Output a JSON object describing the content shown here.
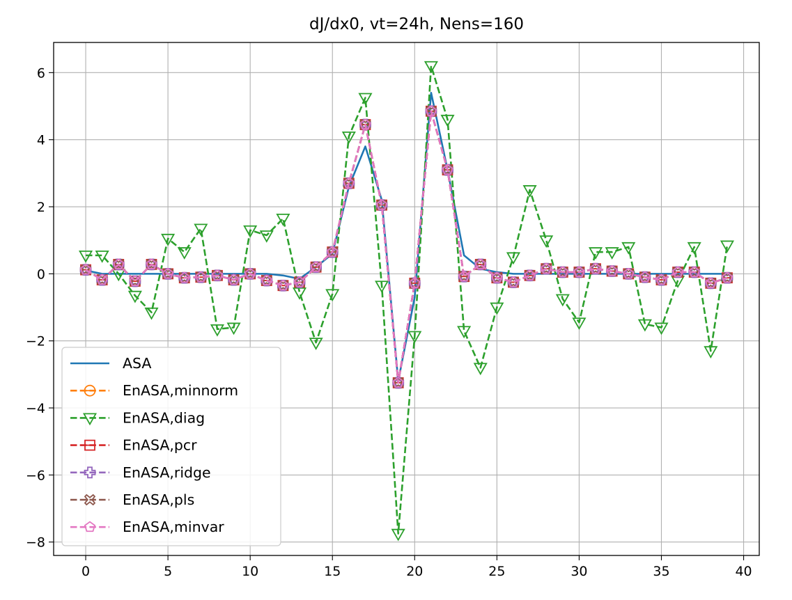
{
  "chart_data": {
    "type": "line",
    "title": "dJ/dx0, vt=24h, Nens=160",
    "xlabel": "",
    "ylabel": "",
    "xlim": [
      -1.95,
      40.95
    ],
    "ylim": [
      -8.4,
      6.9
    ],
    "xticks": [
      0,
      5,
      10,
      15,
      20,
      25,
      30,
      35,
      40
    ],
    "xtick_labels": [
      "0",
      "5",
      "10",
      "15",
      "20",
      "25",
      "30",
      "35",
      "40"
    ],
    "yticks": [
      -8,
      -6,
      -4,
      -2,
      0,
      2,
      4,
      6
    ],
    "ytick_labels": [
      "−8",
      "−6",
      "−4",
      "−2",
      "0",
      "2",
      "4",
      "6"
    ],
    "grid": true,
    "legend_position": "lower-left",
    "x": [
      0,
      1,
      2,
      3,
      4,
      5,
      6,
      7,
      8,
      9,
      10,
      11,
      12,
      13,
      14,
      15,
      16,
      17,
      18,
      19,
      20,
      21,
      22,
      23,
      24,
      25,
      26,
      27,
      28,
      29,
      30,
      31,
      32,
      33,
      34,
      35,
      36,
      37,
      38,
      39
    ],
    "series": [
      {
        "name": "ASA",
        "color": "#1f77b4",
        "style": "solid",
        "marker": "none",
        "values": [
          0.1,
          0.0,
          0.0,
          0.0,
          0.0,
          0.0,
          0.0,
          0.0,
          0.0,
          0.0,
          0.0,
          0.0,
          -0.05,
          -0.15,
          0.2,
          0.6,
          2.6,
          3.8,
          2.2,
          -3.2,
          -0.7,
          5.4,
          3.1,
          0.55,
          0.15,
          0.05,
          0.0,
          0.0,
          0.0,
          0.0,
          0.0,
          0.0,
          0.0,
          0.0,
          0.0,
          0.0,
          0.0,
          0.0,
          0.0,
          0.0
        ]
      },
      {
        "name": "EnASA,minnorm",
        "color": "#ff7f0e",
        "style": "dashed",
        "marker": "circle",
        "values": [
          0.12,
          -0.18,
          0.28,
          -0.22,
          0.28,
          0.0,
          -0.12,
          -0.1,
          -0.05,
          -0.18,
          0.0,
          -0.2,
          -0.35,
          -0.25,
          0.2,
          0.65,
          2.7,
          4.45,
          2.05,
          -3.25,
          -0.28,
          4.85,
          3.1,
          -0.08,
          0.28,
          -0.12,
          -0.25,
          -0.05,
          0.15,
          0.05,
          0.05,
          0.15,
          0.08,
          0.0,
          -0.1,
          -0.18,
          0.05,
          0.05,
          -0.28,
          -0.12
        ]
      },
      {
        "name": "EnASA,diag",
        "color": "#2ca02c",
        "style": "dashed",
        "marker": "triangle-down",
        "values": [
          0.55,
          0.55,
          0.0,
          -0.65,
          -1.15,
          1.05,
          0.65,
          1.35,
          -1.65,
          -1.6,
          1.3,
          1.15,
          1.65,
          -0.55,
          -2.05,
          -0.6,
          4.1,
          5.25,
          -0.35,
          -7.75,
          -1.85,
          6.2,
          4.6,
          -1.7,
          -2.8,
          -1.0,
          0.5,
          2.5,
          1.0,
          -0.75,
          -1.45,
          0.65,
          0.65,
          0.8,
          -1.5,
          -1.6,
          -0.2,
          0.8,
          -2.3,
          0.85
        ]
      },
      {
        "name": "EnASA,pcr",
        "color": "#d62728",
        "style": "dashed",
        "marker": "square",
        "values": [
          0.12,
          -0.18,
          0.28,
          -0.22,
          0.28,
          0.0,
          -0.12,
          -0.1,
          -0.05,
          -0.18,
          0.0,
          -0.2,
          -0.35,
          -0.25,
          0.2,
          0.65,
          2.7,
          4.45,
          2.05,
          -3.25,
          -0.28,
          4.85,
          3.1,
          -0.08,
          0.28,
          -0.12,
          -0.25,
          -0.05,
          0.15,
          0.05,
          0.05,
          0.15,
          0.08,
          0.0,
          -0.1,
          -0.18,
          0.05,
          0.05,
          -0.28,
          -0.12
        ]
      },
      {
        "name": "EnASA,ridge",
        "color": "#9467bd",
        "style": "dashed",
        "marker": "plus",
        "values": [
          0.12,
          -0.18,
          0.28,
          -0.22,
          0.28,
          0.0,
          -0.12,
          -0.1,
          -0.05,
          -0.18,
          0.0,
          -0.2,
          -0.35,
          -0.25,
          0.2,
          0.65,
          2.7,
          4.45,
          2.05,
          -3.25,
          -0.28,
          4.85,
          3.1,
          -0.08,
          0.28,
          -0.12,
          -0.25,
          -0.05,
          0.15,
          0.05,
          0.05,
          0.15,
          0.08,
          0.0,
          -0.1,
          -0.18,
          0.05,
          0.05,
          -0.28,
          -0.12
        ]
      },
      {
        "name": "EnASA,pls",
        "color": "#8c564b",
        "style": "dashed",
        "marker": "x",
        "values": [
          0.12,
          -0.18,
          0.28,
          -0.22,
          0.28,
          0.0,
          -0.12,
          -0.1,
          -0.05,
          -0.18,
          0.0,
          -0.2,
          -0.35,
          -0.25,
          0.2,
          0.65,
          2.7,
          4.45,
          2.05,
          -3.25,
          -0.28,
          4.85,
          3.1,
          -0.08,
          0.28,
          -0.12,
          -0.25,
          -0.05,
          0.15,
          0.05,
          0.05,
          0.15,
          0.08,
          0.0,
          -0.1,
          -0.18,
          0.05,
          0.05,
          -0.28,
          -0.12
        ]
      },
      {
        "name": "EnASA,minvar",
        "color": "#e377c2",
        "style": "dashed",
        "marker": "pentagon",
        "values": [
          0.12,
          -0.18,
          0.28,
          -0.22,
          0.28,
          0.0,
          -0.12,
          -0.1,
          -0.05,
          -0.18,
          0.0,
          -0.2,
          -0.35,
          -0.25,
          0.2,
          0.65,
          2.7,
          4.45,
          2.05,
          -3.25,
          -0.28,
          4.85,
          3.1,
          -0.08,
          0.28,
          -0.12,
          -0.25,
          -0.05,
          0.15,
          0.05,
          0.05,
          0.15,
          0.08,
          0.0,
          -0.1,
          -0.18,
          0.05,
          0.05,
          -0.28,
          -0.12
        ]
      }
    ]
  }
}
